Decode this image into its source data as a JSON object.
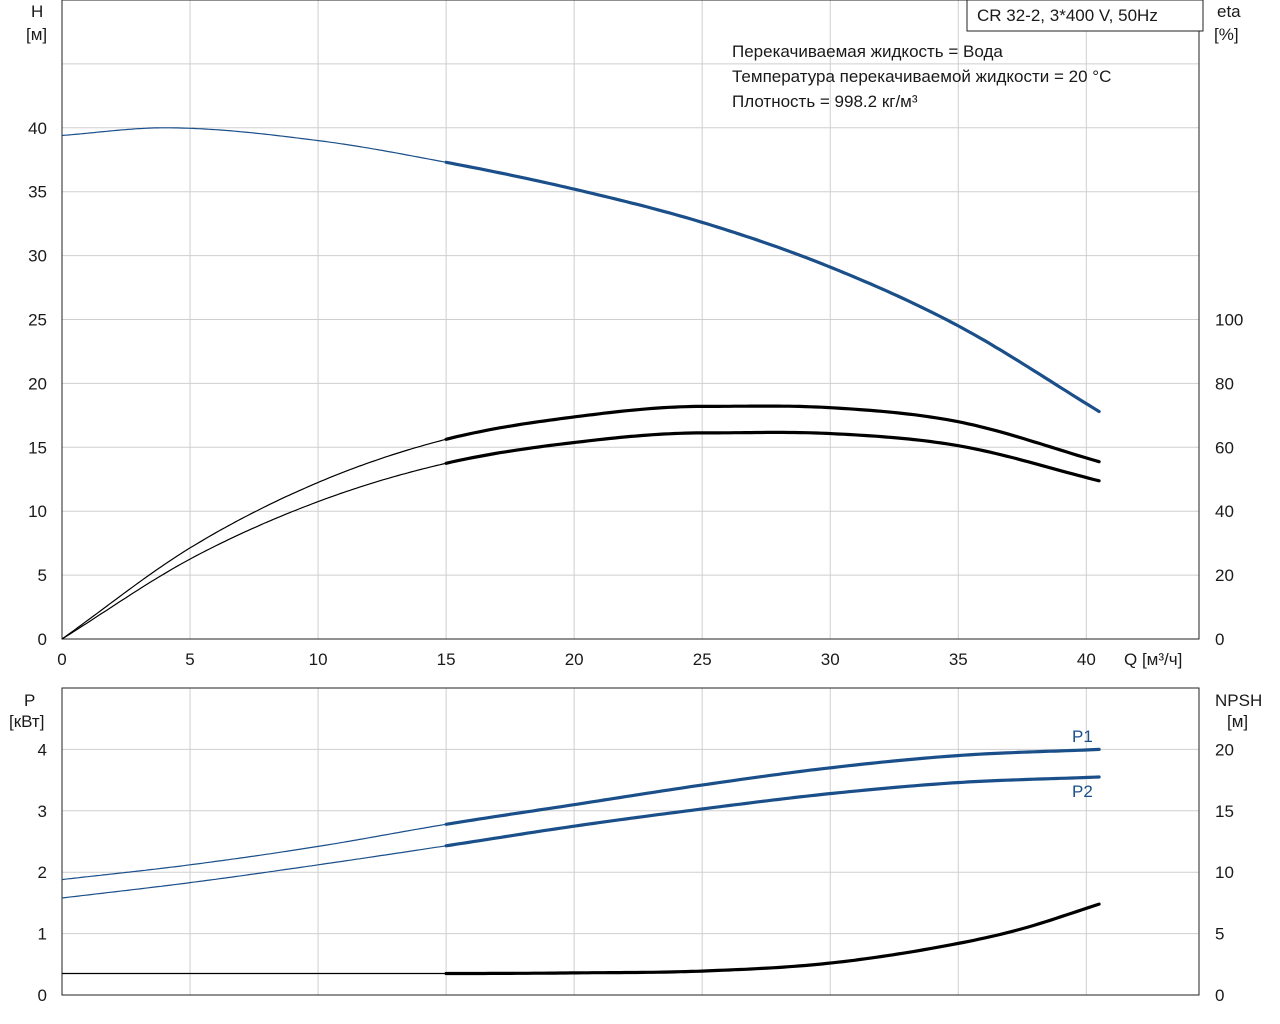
{
  "colors": {
    "blue": "#1a4f8a",
    "black": "#000000",
    "grid": "#cfcfcf"
  },
  "chart_data": [
    {
      "type": "line",
      "title": "CR 32-2, 3*400 V, 50Hz",
      "annotations": [
        "Перекачиваемая жидкость = Вода",
        "Температура перекачиваемой жидкости = 20 °C",
        "Плотность = 998.2 кг/м³"
      ],
      "xlabel": "Q [м³/ч]",
      "ylabel": [
        "H",
        "[м]"
      ],
      "y2label": [
        "eta",
        "[%]"
      ],
      "xlim": [
        0,
        44.4
      ],
      "ylim": [
        0,
        50
      ],
      "y2lim": [
        0,
        200
      ],
      "xticks": [
        0,
        5,
        10,
        15,
        20,
        25,
        30,
        35,
        40
      ],
      "yticks": [
        0,
        5,
        10,
        15,
        20,
        25,
        30,
        35,
        40
      ],
      "y2ticks": [
        0,
        20,
        40,
        60,
        80,
        100
      ],
      "grid": true,
      "series": [
        {
          "axis": "left",
          "color": "blue",
          "operating_from": 15,
          "x": [
            0,
            4,
            10,
            15,
            20,
            25,
            30,
            35,
            40.5
          ],
          "y": [
            39.4,
            40.0,
            39.0,
            37.3,
            35.2,
            32.6,
            29.1,
            24.5,
            17.8
          ]
        },
        {
          "axis": "right",
          "color": "black",
          "operating_from": 15,
          "x": [
            0,
            5,
            10,
            15,
            20,
            25,
            30,
            35,
            40.5
          ],
          "y": [
            0,
            28.5,
            49,
            62.5,
            69.5,
            72.8,
            72.4,
            68,
            55.5
          ]
        },
        {
          "axis": "right",
          "color": "black",
          "operating_from": 15,
          "x": [
            0,
            5,
            10,
            15,
            20,
            25,
            30,
            35,
            40.5
          ],
          "y": [
            0,
            25,
            43,
            55,
            61.5,
            64.5,
            64.3,
            60.5,
            49.5
          ]
        }
      ]
    },
    {
      "type": "line",
      "xlim": [
        0,
        44.4
      ],
      "ylabel": [
        "P",
        "[кВт]"
      ],
      "y2label": [
        "NPSH",
        "[м]"
      ],
      "ylim": [
        0,
        5
      ],
      "y2lim": [
        0,
        25
      ],
      "xticks": [
        0,
        5,
        10,
        15,
        20,
        25,
        30,
        35,
        40
      ],
      "yticks": [
        0,
        1,
        2,
        3,
        4
      ],
      "y2ticks": [
        0,
        5,
        10,
        15,
        20
      ],
      "grid": true,
      "series": [
        {
          "name": "P1",
          "axis": "left",
          "color": "blue",
          "operating_from": 15,
          "x": [
            0,
            5,
            10,
            15,
            20,
            25,
            30,
            35,
            40.5
          ],
          "y": [
            1.88,
            2.12,
            2.42,
            2.78,
            3.1,
            3.42,
            3.7,
            3.9,
            4.0
          ]
        },
        {
          "name": "P2",
          "axis": "left",
          "color": "blue",
          "operating_from": 15,
          "x": [
            0,
            5,
            10,
            15,
            20,
            25,
            30,
            35,
            40.5
          ],
          "y": [
            1.58,
            1.83,
            2.12,
            2.43,
            2.75,
            3.03,
            3.28,
            3.46,
            3.55
          ]
        },
        {
          "axis": "right",
          "color": "black",
          "operating_from": 15,
          "x": [
            0,
            5,
            10,
            15,
            20,
            25,
            30,
            35,
            37.5,
            40.5
          ],
          "y": [
            1.75,
            1.75,
            1.75,
            1.75,
            1.8,
            1.95,
            2.6,
            4.2,
            5.4,
            7.4
          ]
        }
      ]
    }
  ]
}
